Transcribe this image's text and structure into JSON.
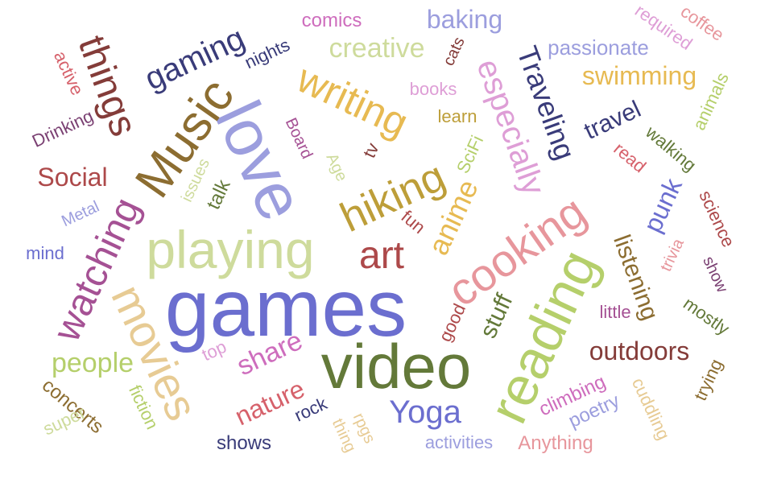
{
  "words": [
    {
      "text": "games",
      "color": "#6b6ecf"
    },
    {
      "text": "video",
      "color": "#637939"
    },
    {
      "text": "love",
      "color": "#9c9ede"
    },
    {
      "text": "playing",
      "color": "#cedb9c"
    },
    {
      "text": "reading",
      "color": "#b5cf6b"
    },
    {
      "text": "Music",
      "color": "#8c6d31"
    },
    {
      "text": "movies",
      "color": "#e7cb94"
    },
    {
      "text": "cooking",
      "color": "#e7969c"
    },
    {
      "text": "hiking",
      "color": "#bd9e39"
    },
    {
      "text": "writing",
      "color": "#e7ba52"
    },
    {
      "text": "watching",
      "color": "#a55194"
    },
    {
      "text": "things",
      "color": "#843c39"
    },
    {
      "text": "art",
      "color": "#ad494a"
    },
    {
      "text": "gaming",
      "color": "#393b79"
    },
    {
      "text": "especially",
      "color": "#de9ed6"
    },
    {
      "text": "Traveling",
      "color": "#393b79"
    },
    {
      "text": "anime",
      "color": "#e7ba52"
    },
    {
      "text": "Yoga",
      "color": "#6b6ecf"
    },
    {
      "text": "outdoors",
      "color": "#843c39"
    },
    {
      "text": "people",
      "color": "#b5cf6b"
    },
    {
      "text": "creative",
      "color": "#cedb9c"
    },
    {
      "text": "share",
      "color": "#ce6dbd"
    },
    {
      "text": "nature",
      "color": "#d6616b"
    },
    {
      "text": "swimming",
      "color": "#e7ba52"
    },
    {
      "text": "listening",
      "color": "#8c6d31"
    },
    {
      "text": "baking",
      "color": "#9c9ede"
    },
    {
      "text": "Social",
      "color": "#ad494a"
    },
    {
      "text": "travel",
      "color": "#393b79"
    },
    {
      "text": "punk",
      "color": "#6b6ecf"
    },
    {
      "text": "stuff",
      "color": "#637939"
    },
    {
      "text": "passionate",
      "color": "#9c9ede"
    },
    {
      "text": "concerts",
      "color": "#8c6d31"
    },
    {
      "text": "climbing",
      "color": "#ce6dbd"
    },
    {
      "text": "poetry",
      "color": "#9c9ede"
    },
    {
      "text": "cuddling",
      "color": "#e7cb94"
    },
    {
      "text": "walking",
      "color": "#637939"
    },
    {
      "text": "science",
      "color": "#ad494a"
    },
    {
      "text": "mostly",
      "color": "#637939"
    },
    {
      "text": "Anything",
      "color": "#e7969c"
    },
    {
      "text": "activities",
      "color": "#9c9ede"
    },
    {
      "text": "shows",
      "color": "#393b79"
    },
    {
      "text": "talk",
      "color": "#637939"
    },
    {
      "text": "Drinking",
      "color": "#7b4173"
    },
    {
      "text": "animals",
      "color": "#b5cf6b"
    },
    {
      "text": "required",
      "color": "#de9ed6"
    },
    {
      "text": "coffee",
      "color": "#e7969c"
    },
    {
      "text": "comics",
      "color": "#ce6dbd"
    },
    {
      "text": "nights",
      "color": "#393b79"
    },
    {
      "text": "active",
      "color": "#d6616b"
    },
    {
      "text": "books",
      "color": "#de9ed6"
    },
    {
      "text": "learn",
      "color": "#bd9e39"
    },
    {
      "text": "cats",
      "color": "#843c39"
    },
    {
      "text": "Board",
      "color": "#a55194"
    },
    {
      "text": "Age",
      "color": "#cedb9c"
    },
    {
      "text": "tv",
      "color": "#843c39"
    },
    {
      "text": "SciFi",
      "color": "#b5cf6b"
    },
    {
      "text": "issues",
      "color": "#cedb9c"
    },
    {
      "text": "Metal",
      "color": "#9c9ede"
    },
    {
      "text": "mind",
      "color": "#6b6ecf"
    },
    {
      "text": "fun",
      "color": "#ad494a"
    },
    {
      "text": "read",
      "color": "#d6616b"
    },
    {
      "text": "trivia",
      "color": "#e7969c"
    },
    {
      "text": "show",
      "color": "#7b4173"
    },
    {
      "text": "little",
      "color": "#a55194"
    },
    {
      "text": "good",
      "color": "#ad494a"
    },
    {
      "text": "top",
      "color": "#de9ed6"
    },
    {
      "text": "fiction",
      "color": "#b5cf6b"
    },
    {
      "text": "super",
      "color": "#cedb9c"
    },
    {
      "text": "rock",
      "color": "#393b79"
    },
    {
      "text": "rpgs",
      "color": "#e7cb94"
    },
    {
      "text": "thing",
      "color": "#e7cb94"
    },
    {
      "text": "trying",
      "color": "#8c6d31"
    }
  ]
}
